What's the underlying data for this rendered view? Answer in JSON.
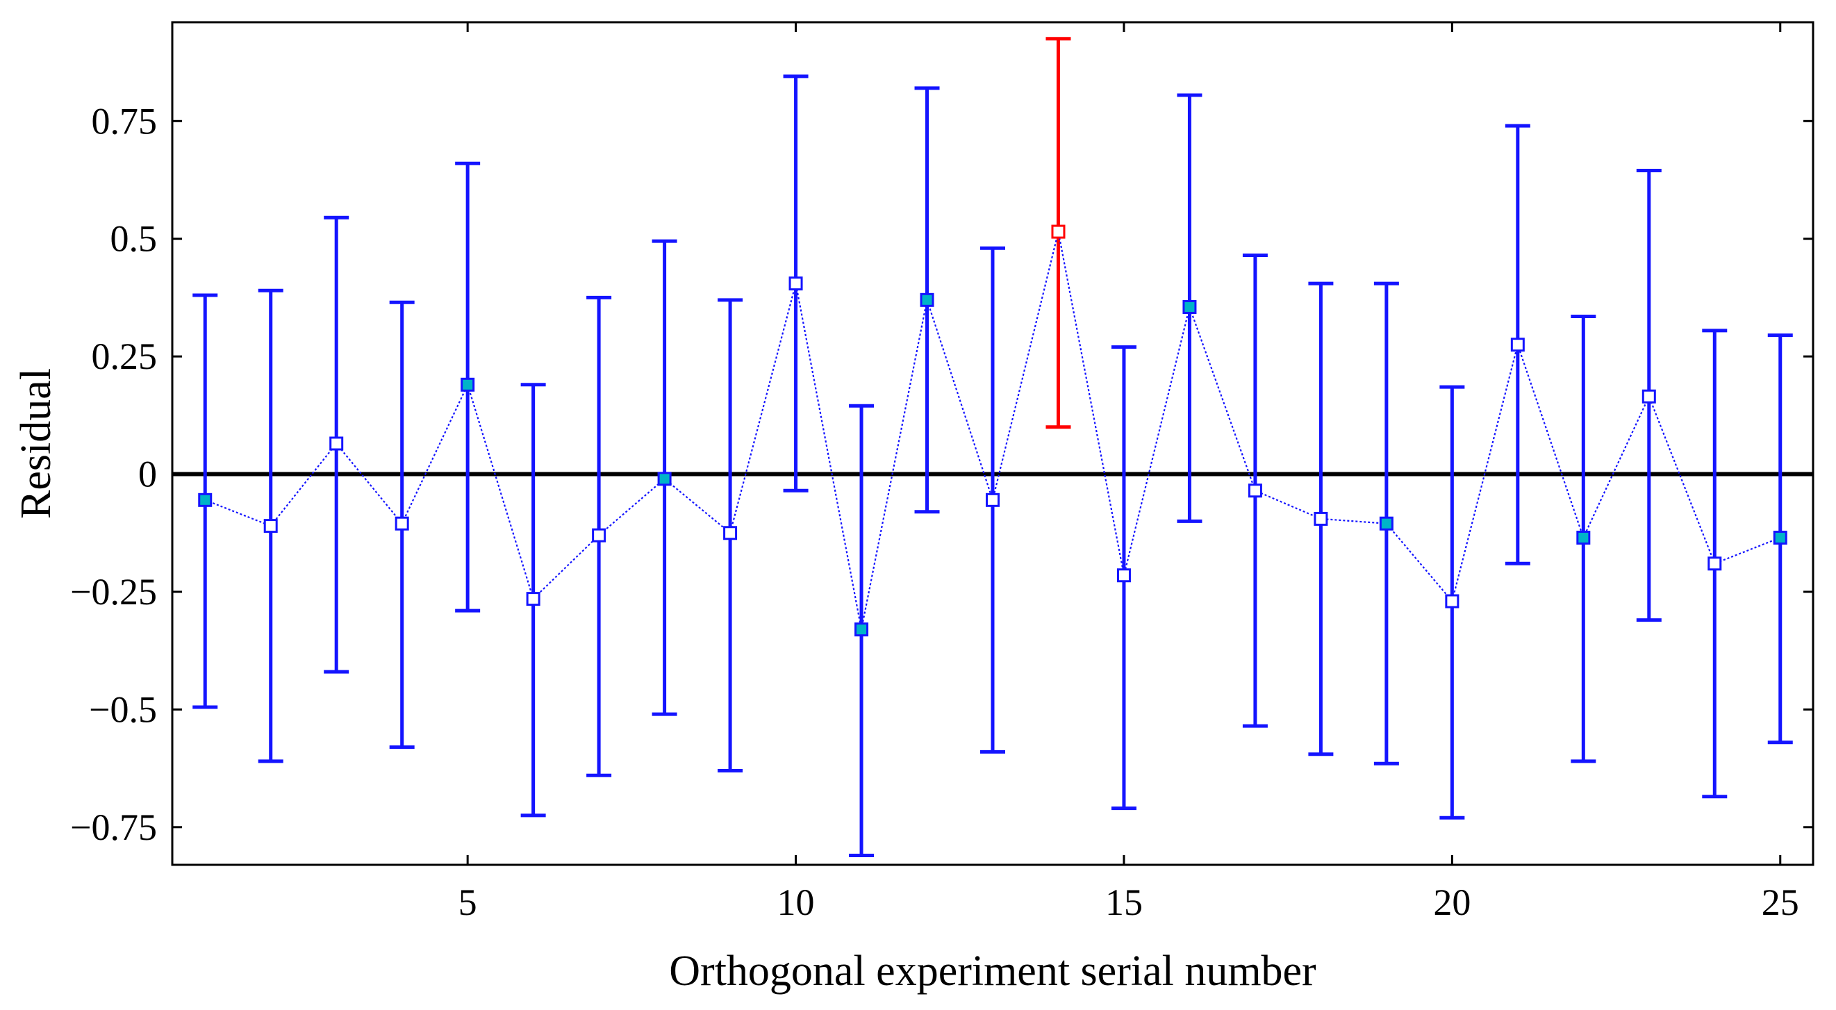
{
  "chart_data": {
    "type": "errorbar",
    "title": "",
    "xlabel": "Orthogonal experiment serial number",
    "ylabel": "Residual",
    "xlim": [
      0.5,
      25.5
    ],
    "ylim": [
      -0.83,
      0.96
    ],
    "xticks": [
      5,
      10,
      15,
      20,
      25
    ],
    "xtick_labels": [
      "5",
      "10",
      "15",
      "20",
      "25"
    ],
    "yticks": [
      -0.75,
      -0.5,
      -0.25,
      0,
      0.25,
      0.5,
      0.75
    ],
    "ytick_labels": [
      "−0.75",
      "−0.5",
      "−0.25",
      "0",
      "0.25",
      "0.5",
      "0.75"
    ],
    "zero_line": 0,
    "grid": false,
    "series": [
      {
        "name": "Residuals",
        "x": [
          1,
          2,
          3,
          4,
          5,
          6,
          7,
          8,
          9,
          10,
          11,
          12,
          13,
          14,
          15,
          16,
          17,
          18,
          19,
          20,
          21,
          22,
          23,
          24,
          25
        ],
        "values": [
          -0.055,
          -0.11,
          0.065,
          -0.105,
          0.19,
          -0.265,
          -0.13,
          -0.01,
          -0.125,
          0.405,
          -0.33,
          0.37,
          -0.055,
          0.515,
          -0.215,
          0.355,
          -0.035,
          -0.095,
          -0.105,
          -0.27,
          0.275,
          -0.135,
          0.165,
          -0.19,
          -0.135
        ],
        "lower": [
          -0.495,
          -0.61,
          -0.42,
          -0.58,
          -0.29,
          -0.725,
          -0.64,
          -0.51,
          -0.63,
          -0.035,
          -0.81,
          -0.08,
          -0.59,
          0.1,
          -0.71,
          -0.1,
          -0.535,
          -0.595,
          -0.615,
          -0.73,
          -0.19,
          -0.61,
          -0.31,
          -0.685,
          -0.57
        ],
        "upper": [
          0.38,
          0.39,
          0.545,
          0.365,
          0.66,
          0.19,
          0.375,
          0.495,
          0.37,
          0.845,
          0.145,
          0.82,
          0.48,
          0.925,
          0.27,
          0.805,
          0.465,
          0.405,
          0.405,
          0.185,
          0.74,
          0.335,
          0.645,
          0.305,
          0.295
        ],
        "highlighted": [
          false,
          false,
          false,
          false,
          false,
          false,
          false,
          false,
          false,
          false,
          false,
          false,
          false,
          true,
          false,
          false,
          false,
          false,
          false,
          false,
          false,
          false,
          false,
          false,
          false
        ],
        "filled_marker": [
          true,
          false,
          false,
          false,
          true,
          false,
          false,
          true,
          false,
          false,
          true,
          true,
          false,
          false,
          false,
          true,
          false,
          false,
          true,
          false,
          false,
          true,
          false,
          false,
          true
        ]
      }
    ],
    "colors": {
      "normal": "#1414ff",
      "highlight": "#ff0000",
      "marker_fill": "#00b4c8",
      "axis": "#000000"
    }
  }
}
